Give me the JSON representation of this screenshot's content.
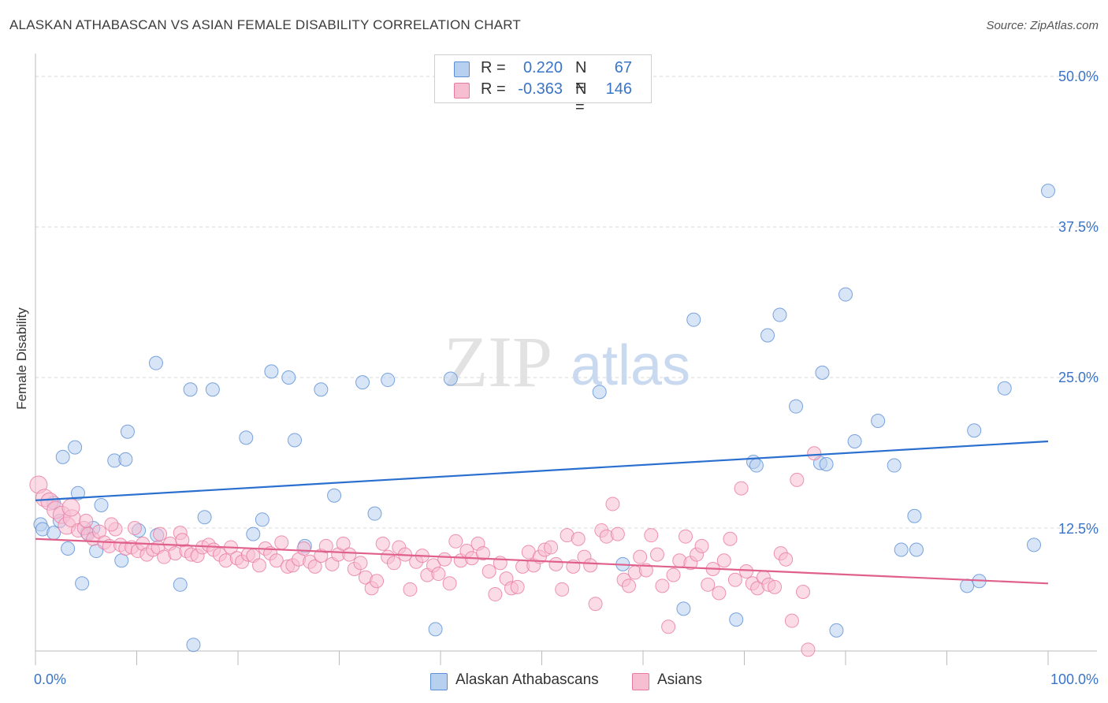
{
  "title": "ALASKAN ATHABASCAN VS ASIAN FEMALE DISABILITY CORRELATION CHART",
  "source": "Source: ZipAtlas.com",
  "watermark": {
    "zip": "ZIP",
    "atlas": "atlas"
  },
  "legend_top": {
    "rows": [
      {
        "r_label": "R =",
        "r_value": "0.220",
        "n_label": "N =",
        "n_value": "67",
        "fill": "#b8d0f0",
        "stroke": "#5b8fd6"
      },
      {
        "r_label": "R =",
        "r_value": "-0.363",
        "n_label": "N =",
        "n_value": "146",
        "fill": "#f7bdd1",
        "stroke": "#e87aa0"
      }
    ]
  },
  "legend_bottom": [
    {
      "label": "Alaskan Athabascans",
      "fill": "#b8d0f0",
      "stroke": "#5b8fd6"
    },
    {
      "label": "Asians",
      "fill": "#f7bdd1",
      "stroke": "#e87aa0"
    }
  ],
  "x_axis": {
    "min_label": "0.0%",
    "max_label": "100.0%"
  },
  "y_axis": {
    "label": "Female Disability",
    "ticks": [
      "50.0%",
      "37.5%",
      "25.0%",
      "12.5%"
    ]
  },
  "chart_data": {
    "type": "scatter",
    "title": "ALASKAN ATHABASCAN VS ASIAN FEMALE DISABILITY CORRELATION CHART",
    "xlabel": "",
    "ylabel": "Female Disability",
    "xlim": [
      0,
      100
    ],
    "ylim": [
      0,
      53
    ],
    "y_ticks": [
      12.5,
      25.0,
      37.5,
      50.0
    ],
    "grid": true,
    "legend": "top-center",
    "series": [
      {
        "name": "Alaskan Athabascans",
        "color": "#5b8fd6",
        "fill": "#b8d0f0",
        "trend": [
          [
            0,
            14.8
          ],
          [
            100,
            19.7
          ]
        ],
        "points": [
          [
            0.5,
            12.8
          ],
          [
            0.7,
            12.4
          ],
          [
            1.8,
            14.6
          ],
          [
            1.8,
            12.1
          ],
          [
            2.4,
            13.1
          ],
          [
            2.7,
            18.4
          ],
          [
            3.2,
            10.8
          ],
          [
            3.9,
            19.2
          ],
          [
            4.2,
            15.4
          ],
          [
            4.6,
            7.9
          ],
          [
            5.1,
            12.1
          ],
          [
            5.7,
            12.5
          ],
          [
            6.0,
            10.6
          ],
          [
            6.5,
            14.4
          ],
          [
            7.8,
            18.1
          ],
          [
            8.5,
            9.8
          ],
          [
            8.9,
            18.2
          ],
          [
            9.1,
            20.5
          ],
          [
            10.2,
            12.3
          ],
          [
            11.9,
            26.2
          ],
          [
            12.0,
            11.9
          ],
          [
            14.3,
            7.8
          ],
          [
            15.3,
            24.0
          ],
          [
            15.6,
            2.8
          ],
          [
            16.7,
            13.4
          ],
          [
            17.5,
            24.0
          ],
          [
            20.8,
            20.0
          ],
          [
            21.5,
            12.0
          ],
          [
            22.4,
            13.2
          ],
          [
            23.3,
            25.5
          ],
          [
            25.0,
            25.0
          ],
          [
            25.6,
            19.8
          ],
          [
            26.6,
            11.0
          ],
          [
            28.2,
            24.0
          ],
          [
            29.5,
            15.2
          ],
          [
            32.3,
            24.6
          ],
          [
            33.5,
            13.7
          ],
          [
            34.8,
            24.8
          ],
          [
            39.5,
            4.1
          ],
          [
            41.0,
            24.9
          ],
          [
            55.7,
            23.8
          ],
          [
            58.0,
            9.5
          ],
          [
            64.0,
            5.8
          ],
          [
            65.0,
            29.8
          ],
          [
            69.2,
            4.9
          ],
          [
            70.9,
            18.0
          ],
          [
            71.2,
            17.7
          ],
          [
            73.5,
            30.2
          ],
          [
            72.3,
            28.5
          ],
          [
            75.1,
            22.6
          ],
          [
            77.5,
            17.9
          ],
          [
            78.1,
            17.8
          ],
          [
            77.7,
            25.4
          ],
          [
            80.0,
            31.9
          ],
          [
            80.9,
            19.7
          ],
          [
            79.1,
            4.0
          ],
          [
            83.2,
            21.4
          ],
          [
            84.8,
            17.7
          ],
          [
            85.5,
            10.7
          ],
          [
            86.8,
            13.5
          ],
          [
            87.0,
            10.7
          ],
          [
            92.7,
            20.6
          ],
          [
            92.0,
            7.7
          ],
          [
            93.2,
            8.1
          ],
          [
            95.7,
            24.1
          ],
          [
            98.6,
            11.1
          ],
          [
            100.0,
            40.5
          ]
        ]
      },
      {
        "name": "Asians",
        "color": "#e87aa0",
        "fill": "#f7bdd1",
        "trend": [
          [
            0,
            11.6
          ],
          [
            100,
            7.9
          ]
        ],
        "points": [
          [
            0.3,
            16.1
          ],
          [
            0.9,
            15.0
          ],
          [
            1.4,
            14.7
          ],
          [
            2.0,
            14.0
          ],
          [
            2.6,
            13.6
          ],
          [
            3.1,
            12.7
          ],
          [
            3.6,
            13.3
          ],
          [
            4.2,
            12.3
          ],
          [
            4.8,
            12.5
          ],
          [
            5.2,
            12.0
          ],
          [
            5.7,
            11.6
          ],
          [
            6.3,
            12.2
          ],
          [
            6.8,
            11.3
          ],
          [
            7.3,
            11.0
          ],
          [
            7.9,
            12.4
          ],
          [
            8.4,
            11.1
          ],
          [
            8.9,
            10.8
          ],
          [
            9.5,
            10.9
          ],
          [
            10.1,
            10.6
          ],
          [
            10.6,
            11.2
          ],
          [
            11.0,
            10.3
          ],
          [
            11.6,
            10.7
          ],
          [
            12.1,
            10.9
          ],
          [
            12.7,
            10.1
          ],
          [
            13.3,
            11.2
          ],
          [
            13.8,
            10.4
          ],
          [
            14.3,
            12.1
          ],
          [
            14.9,
            10.6
          ],
          [
            15.4,
            10.3
          ],
          [
            16.0,
            10.2
          ],
          [
            16.5,
            10.9
          ],
          [
            17.1,
            11.1
          ],
          [
            17.6,
            10.7
          ],
          [
            18.2,
            10.3
          ],
          [
            18.8,
            9.8
          ],
          [
            19.3,
            10.9
          ],
          [
            19.9,
            10.0
          ],
          [
            20.4,
            9.7
          ],
          [
            21.0,
            10.3
          ],
          [
            21.5,
            10.2
          ],
          [
            22.1,
            9.4
          ],
          [
            22.7,
            10.8
          ],
          [
            23.2,
            10.4
          ],
          [
            23.8,
            9.8
          ],
          [
            24.3,
            11.3
          ],
          [
            24.9,
            9.3
          ],
          [
            25.4,
            9.4
          ],
          [
            26.0,
            9.9
          ],
          [
            26.5,
            10.8
          ],
          [
            27.1,
            9.7
          ],
          [
            27.6,
            9.3
          ],
          [
            28.2,
            10.2
          ],
          [
            28.7,
            11.0
          ],
          [
            29.3,
            9.5
          ],
          [
            29.9,
            10.3
          ],
          [
            30.4,
            11.2
          ],
          [
            31.0,
            10.3
          ],
          [
            31.5,
            9.1
          ],
          [
            32.1,
            9.6
          ],
          [
            32.6,
            8.4
          ],
          [
            33.2,
            7.5
          ],
          [
            33.7,
            8.1
          ],
          [
            34.3,
            11.2
          ],
          [
            34.8,
            10.1
          ],
          [
            35.4,
            9.6
          ],
          [
            35.9,
            10.9
          ],
          [
            36.5,
            10.3
          ],
          [
            37.0,
            7.4
          ],
          [
            37.6,
            9.7
          ],
          [
            38.2,
            10.2
          ],
          [
            38.7,
            8.6
          ],
          [
            39.3,
            9.4
          ],
          [
            39.8,
            8.7
          ],
          [
            40.4,
            9.9
          ],
          [
            40.9,
            7.9
          ],
          [
            41.5,
            11.4
          ],
          [
            42.0,
            9.8
          ],
          [
            42.6,
            10.6
          ],
          [
            43.1,
            10.0
          ],
          [
            43.7,
            11.2
          ],
          [
            44.2,
            10.4
          ],
          [
            44.8,
            8.9
          ],
          [
            45.4,
            7.0
          ],
          [
            45.9,
            9.6
          ],
          [
            46.5,
            8.3
          ],
          [
            47.0,
            7.5
          ],
          [
            47.6,
            7.6
          ],
          [
            48.1,
            9.3
          ],
          [
            48.7,
            10.5
          ],
          [
            49.2,
            9.4
          ],
          [
            49.8,
            10.1
          ],
          [
            50.3,
            10.7
          ],
          [
            50.9,
            10.9
          ],
          [
            51.4,
            9.5
          ],
          [
            52.0,
            7.4
          ],
          [
            52.5,
            11.9
          ],
          [
            53.1,
            9.3
          ],
          [
            53.6,
            11.6
          ],
          [
            54.2,
            10.1
          ],
          [
            54.8,
            9.4
          ],
          [
            55.3,
            6.2
          ],
          [
            55.9,
            12.3
          ],
          [
            56.4,
            11.8
          ],
          [
            57.0,
            14.5
          ],
          [
            57.5,
            12.0
          ],
          [
            58.1,
            8.2
          ],
          [
            58.6,
            7.7
          ],
          [
            59.2,
            8.8
          ],
          [
            59.7,
            10.1
          ],
          [
            60.3,
            9.0
          ],
          [
            60.8,
            11.9
          ],
          [
            61.4,
            10.3
          ],
          [
            61.9,
            7.7
          ],
          [
            62.5,
            4.3
          ],
          [
            63.0,
            8.6
          ],
          [
            63.6,
            9.8
          ],
          [
            64.2,
            11.8
          ],
          [
            64.7,
            9.6
          ],
          [
            65.3,
            10.3
          ],
          [
            65.8,
            11.0
          ],
          [
            66.4,
            7.8
          ],
          [
            66.9,
            9.1
          ],
          [
            67.5,
            7.1
          ],
          [
            68.0,
            9.8
          ],
          [
            68.6,
            11.6
          ],
          [
            69.1,
            8.2
          ],
          [
            69.7,
            15.8
          ],
          [
            70.2,
            8.9
          ],
          [
            70.8,
            7.9
          ],
          [
            71.3,
            7.5
          ],
          [
            71.9,
            8.4
          ],
          [
            72.4,
            7.8
          ],
          [
            73.0,
            7.6
          ],
          [
            73.6,
            10.4
          ],
          [
            74.1,
            9.9
          ],
          [
            74.7,
            4.8
          ],
          [
            75.2,
            16.5
          ],
          [
            75.8,
            7.2
          ],
          [
            76.3,
            2.4
          ],
          [
            76.9,
            18.7
          ],
          [
            3.5,
            14.2
          ],
          [
            5.0,
            13.1
          ],
          [
            7.5,
            12.8
          ],
          [
            9.8,
            12.5
          ],
          [
            12.3,
            12.0
          ],
          [
            14.5,
            11.5
          ]
        ]
      }
    ]
  }
}
